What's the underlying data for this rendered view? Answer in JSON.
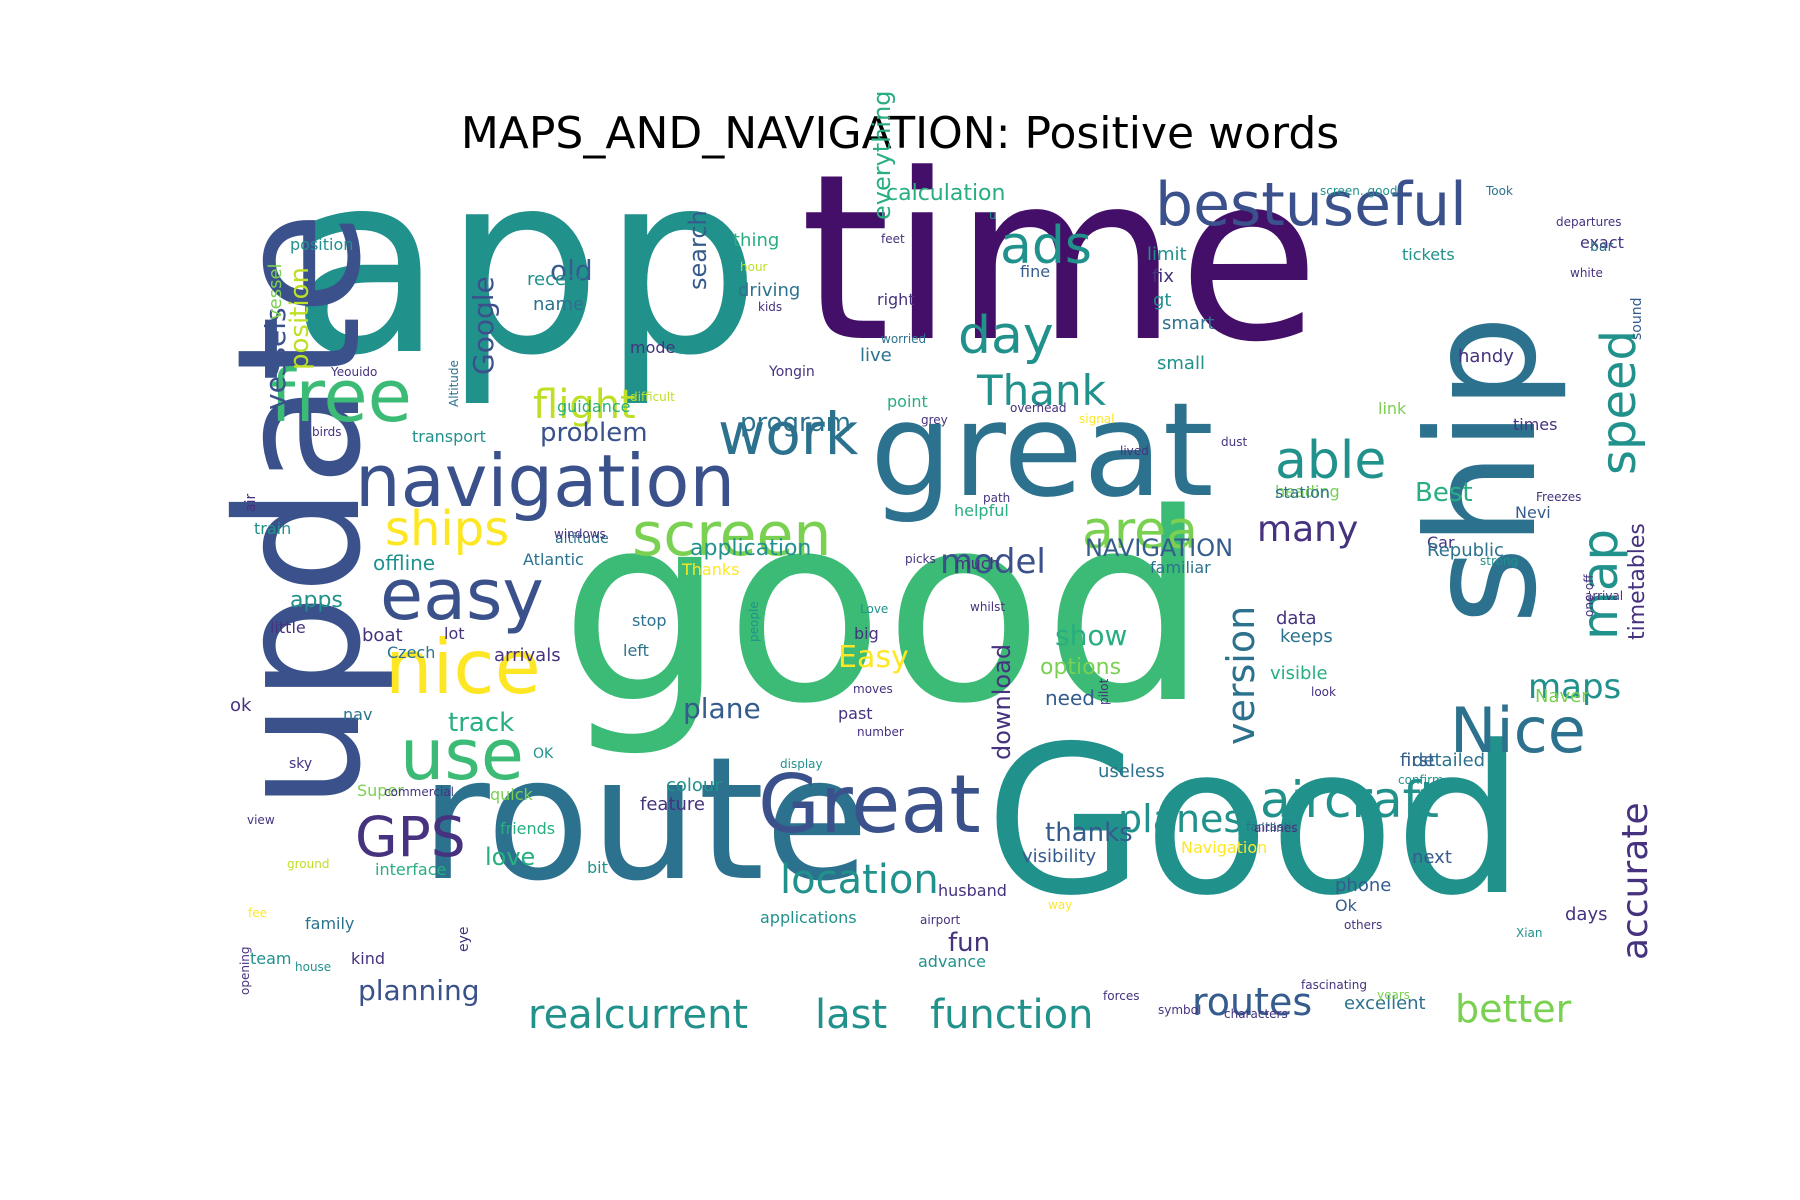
{
  "title": "MAPS_AND_NAVIGATION: Positive words",
  "palette": {
    "dark_purple": "#440f69",
    "purple": "#46327e",
    "indigo": "#3b518b",
    "blue": "#365c8d",
    "steel": "#2c728e",
    "teal": "#21918c",
    "sea": "#28ae80",
    "green": "#3bbb75",
    "lime": "#7ad151",
    "yellow_green": "#bddf26",
    "yellow": "#fde725"
  },
  "words": [
    {
      "text": "app",
      "color": "teal"
    },
    {
      "text": "time",
      "color": "dark_purple"
    },
    {
      "text": "good",
      "color": "green"
    },
    {
      "text": "Good",
      "color": "teal"
    },
    {
      "text": "update",
      "color": "indigo"
    },
    {
      "text": "route",
      "color": "steel"
    },
    {
      "text": "ship",
      "color": "steel"
    },
    {
      "text": "great",
      "color": "steel"
    },
    {
      "text": "navigation",
      "color": "indigo"
    },
    {
      "text": "bestuseful",
      "color": "indigo"
    },
    {
      "text": "free",
      "color": "green"
    },
    {
      "text": "easy",
      "color": "indigo"
    },
    {
      "text": "nice",
      "color": "yellow"
    },
    {
      "text": "use",
      "color": "green"
    },
    {
      "text": "Great",
      "color": "indigo"
    },
    {
      "text": "GPS",
      "color": "purple"
    },
    {
      "text": "Nice",
      "color": "steel"
    },
    {
      "text": "aircraft",
      "color": "teal"
    },
    {
      "text": "screen",
      "color": "lime"
    },
    {
      "text": "ships",
      "color": "yellow"
    },
    {
      "text": "area",
      "color": "lime"
    },
    {
      "text": "work",
      "color": "steel"
    },
    {
      "text": "day",
      "color": "teal"
    },
    {
      "text": "ads",
      "color": "teal"
    },
    {
      "text": "able",
      "color": "teal"
    },
    {
      "text": "speed",
      "color": "teal"
    },
    {
      "text": "map",
      "color": "teal"
    },
    {
      "text": "Thank",
      "color": "teal"
    },
    {
      "text": "flight",
      "color": "yellow_green"
    },
    {
      "text": "location",
      "color": "teal"
    },
    {
      "text": "realcurrent",
      "color": "teal"
    },
    {
      "text": "last",
      "color": "teal"
    },
    {
      "text": "function",
      "color": "teal"
    },
    {
      "text": "routes",
      "color": "blue"
    },
    {
      "text": "better",
      "color": "lime"
    },
    {
      "text": "planes",
      "color": "teal"
    },
    {
      "text": "maps",
      "color": "teal"
    },
    {
      "text": "version",
      "color": "steel"
    },
    {
      "text": "accurate",
      "color": "purple"
    },
    {
      "text": "many",
      "color": "purple"
    },
    {
      "text": "model",
      "color": "indigo"
    },
    {
      "text": "vessels",
      "color": "indigo"
    },
    {
      "text": "Google",
      "color": "indigo"
    },
    {
      "text": "position",
      "color": "yellow_green"
    },
    {
      "text": "old",
      "color": "blue"
    },
    {
      "text": "search",
      "color": "blue"
    },
    {
      "text": "everything",
      "color": "sea"
    },
    {
      "text": "calculation",
      "color": "sea"
    },
    {
      "text": "program",
      "color": "steel"
    },
    {
      "text": "problem",
      "color": "indigo"
    },
    {
      "text": "NAVIGATION",
      "color": "blue"
    },
    {
      "text": "timetables",
      "color": "purple"
    },
    {
      "text": "Best",
      "color": "sea"
    },
    {
      "text": "Easy",
      "color": "yellow"
    },
    {
      "text": "show",
      "color": "sea"
    },
    {
      "text": "options",
      "color": "lime"
    },
    {
      "text": "download",
      "color": "purple"
    },
    {
      "text": "plane",
      "color": "blue"
    },
    {
      "text": "track",
      "color": "sea"
    },
    {
      "text": "apps",
      "color": "teal"
    },
    {
      "text": "application",
      "color": "teal"
    },
    {
      "text": "fun",
      "color": "purple"
    },
    {
      "text": "thanks",
      "color": "blue"
    },
    {
      "text": "love",
      "color": "sea"
    },
    {
      "text": "planning",
      "color": "indigo"
    },
    {
      "text": "need",
      "color": "blue"
    },
    {
      "text": "offline",
      "color": "teal"
    },
    {
      "text": "boat",
      "color": "purple"
    },
    {
      "text": "colour",
      "color": "teal"
    },
    {
      "text": "feature",
      "color": "purple"
    },
    {
      "text": "visibility",
      "color": "blue"
    },
    {
      "text": "husband",
      "color": "purple"
    },
    {
      "text": "advance",
      "color": "teal"
    },
    {
      "text": "useless",
      "color": "steel"
    },
    {
      "text": "detailed",
      "color": "steel"
    },
    {
      "text": "first",
      "color": "blue"
    },
    {
      "text": "next",
      "color": "blue"
    },
    {
      "text": "phone",
      "color": "blue"
    },
    {
      "text": "Ok",
      "color": "blue"
    },
    {
      "text": "days",
      "color": "purple"
    },
    {
      "text": "excellent",
      "color": "steel"
    },
    {
      "text": "keeps",
      "color": "steel"
    },
    {
      "text": "data",
      "color": "purple"
    },
    {
      "text": "visible",
      "color": "sea"
    },
    {
      "text": "Naver",
      "color": "lime"
    },
    {
      "text": "Nevi",
      "color": "blue"
    },
    {
      "text": "Car",
      "color": "purple"
    },
    {
      "text": "Republic",
      "color": "steel"
    },
    {
      "text": "heading",
      "color": "lime"
    },
    {
      "text": "station",
      "color": "steel"
    },
    {
      "text": "handy",
      "color": "purple"
    },
    {
      "text": "link",
      "color": "lime"
    },
    {
      "text": "times",
      "color": "purple"
    },
    {
      "text": "exact",
      "color": "purple"
    },
    {
      "text": "bar",
      "color": "steel"
    },
    {
      "text": "tickets",
      "color": "teal"
    },
    {
      "text": "sound",
      "color": "blue"
    },
    {
      "text": "limit",
      "color": "teal"
    },
    {
      "text": "fix",
      "color": "purple"
    },
    {
      "text": "gt",
      "color": "teal"
    },
    {
      "text": "smart",
      "color": "steel"
    },
    {
      "text": "small",
      "color": "teal"
    },
    {
      "text": "fine",
      "color": "blue"
    },
    {
      "text": "right",
      "color": "purple"
    },
    {
      "text": "live",
      "color": "steel"
    },
    {
      "text": "point",
      "color": "sea"
    },
    {
      "text": "thing",
      "color": "sea"
    },
    {
      "text": "driving",
      "color": "steel"
    },
    {
      "text": "recent",
      "color": "teal"
    },
    {
      "text": "name",
      "color": "steel"
    },
    {
      "text": "mode",
      "color": "purple"
    },
    {
      "text": "guidance",
      "color": "sea"
    },
    {
      "text": "transport",
      "color": "teal"
    },
    {
      "text": "train",
      "color": "teal"
    },
    {
      "text": "little",
      "color": "purple"
    },
    {
      "text": "lot",
      "color": "purple"
    },
    {
      "text": "Czech",
      "color": "steel"
    },
    {
      "text": "arrivals",
      "color": "purple"
    },
    {
      "text": "Atlantic",
      "color": "steel"
    },
    {
      "text": "nav",
      "color": "steel"
    },
    {
      "text": "ok",
      "color": "purple"
    },
    {
      "text": "Super",
      "color": "lime"
    },
    {
      "text": "quick",
      "color": "lime"
    },
    {
      "text": "friends",
      "color": "sea"
    },
    {
      "text": "interface",
      "color": "sea"
    },
    {
      "text": "family",
      "color": "steel"
    },
    {
      "text": "kind",
      "color": "purple"
    },
    {
      "text": "team",
      "color": "teal"
    },
    {
      "text": "applications",
      "color": "teal"
    },
    {
      "text": "bit",
      "color": "teal"
    },
    {
      "text": "stop",
      "color": "steel"
    },
    {
      "text": "left",
      "color": "steel"
    },
    {
      "text": "big",
      "color": "purple"
    },
    {
      "text": "past",
      "color": "purple"
    },
    {
      "text": "much",
      "color": "purple"
    },
    {
      "text": "familiar",
      "color": "steel"
    },
    {
      "text": "helpful",
      "color": "sea"
    },
    {
      "text": "Navigation",
      "color": "yellow"
    },
    {
      "text": "position",
      "color": "teal"
    },
    {
      "text": "vessel",
      "color": "lime"
    },
    {
      "text": "Thanks",
      "color": "yellow"
    },
    {
      "text": "Yongin",
      "color": "purple"
    },
    {
      "text": "difficult",
      "color": "yellow_green"
    },
    {
      "text": "altitude",
      "color": "steel"
    },
    {
      "text": "windows",
      "color": "purple"
    },
    {
      "text": "Yeouido",
      "color": "purple"
    },
    {
      "text": "birds",
      "color": "purple"
    },
    {
      "text": "Altitude",
      "color": "steel"
    },
    {
      "text": "air",
      "color": "purple"
    },
    {
      "text": "sky",
      "color": "purple"
    },
    {
      "text": "OK",
      "color": "teal"
    },
    {
      "text": "commercial",
      "color": "purple"
    },
    {
      "text": "view",
      "color": "purple"
    },
    {
      "text": "ground",
      "color": "yellow_green"
    },
    {
      "text": "fee",
      "color": "yellow"
    },
    {
      "text": "eye",
      "color": "purple"
    },
    {
      "text": "house",
      "color": "teal"
    },
    {
      "text": "opening",
      "color": "purple"
    },
    {
      "text": "hour",
      "color": "yellow_green"
    },
    {
      "text": "kids",
      "color": "purple"
    },
    {
      "text": "feet",
      "color": "purple"
    },
    {
      "text": "worried",
      "color": "steel"
    },
    {
      "text": "grey",
      "color": "purple"
    },
    {
      "text": "overhead",
      "color": "purple"
    },
    {
      "text": "signal",
      "color": "yellow"
    },
    {
      "text": "dust",
      "color": "purple"
    },
    {
      "text": "lived",
      "color": "purple"
    },
    {
      "text": "path",
      "color": "purple"
    },
    {
      "text": "picks",
      "color": "purple"
    },
    {
      "text": "whilst",
      "color": "purple"
    },
    {
      "text": "Love",
      "color": "teal"
    },
    {
      "text": "moves",
      "color": "purple"
    },
    {
      "text": "number",
      "color": "purple"
    },
    {
      "text": "people",
      "color": "teal"
    },
    {
      "text": "display",
      "color": "teal"
    },
    {
      "text": "pilot",
      "color": "purple"
    },
    {
      "text": "airport",
      "color": "purple"
    },
    {
      "text": "way",
      "color": "yellow"
    },
    {
      "text": "confirm",
      "color": "teal"
    },
    {
      "text": "fantastic",
      "color": "steel"
    },
    {
      "text": "airlines",
      "color": "purple"
    },
    {
      "text": "others",
      "color": "purple"
    },
    {
      "text": "Xian",
      "color": "teal"
    },
    {
      "text": "forces",
      "color": "purple"
    },
    {
      "text": "years",
      "color": "lime"
    },
    {
      "text": "symbol",
      "color": "purple"
    },
    {
      "text": "characters",
      "color": "purple"
    },
    {
      "text": "fascinating",
      "color": "purple"
    },
    {
      "text": "look",
      "color": "purple"
    },
    {
      "text": "one-off",
      "color": "purple"
    },
    {
      "text": "arrival",
      "color": "purple"
    },
    {
      "text": "strong",
      "color": "teal"
    },
    {
      "text": "Freezes",
      "color": "purple"
    },
    {
      "text": "white",
      "color": "purple"
    },
    {
      "text": "departures",
      "color": "purple"
    },
    {
      "text": "Took",
      "color": "steel"
    },
    {
      "text": "screen..good",
      "color": "teal"
    },
    {
      "text": "u",
      "color": "teal"
    }
  ]
}
